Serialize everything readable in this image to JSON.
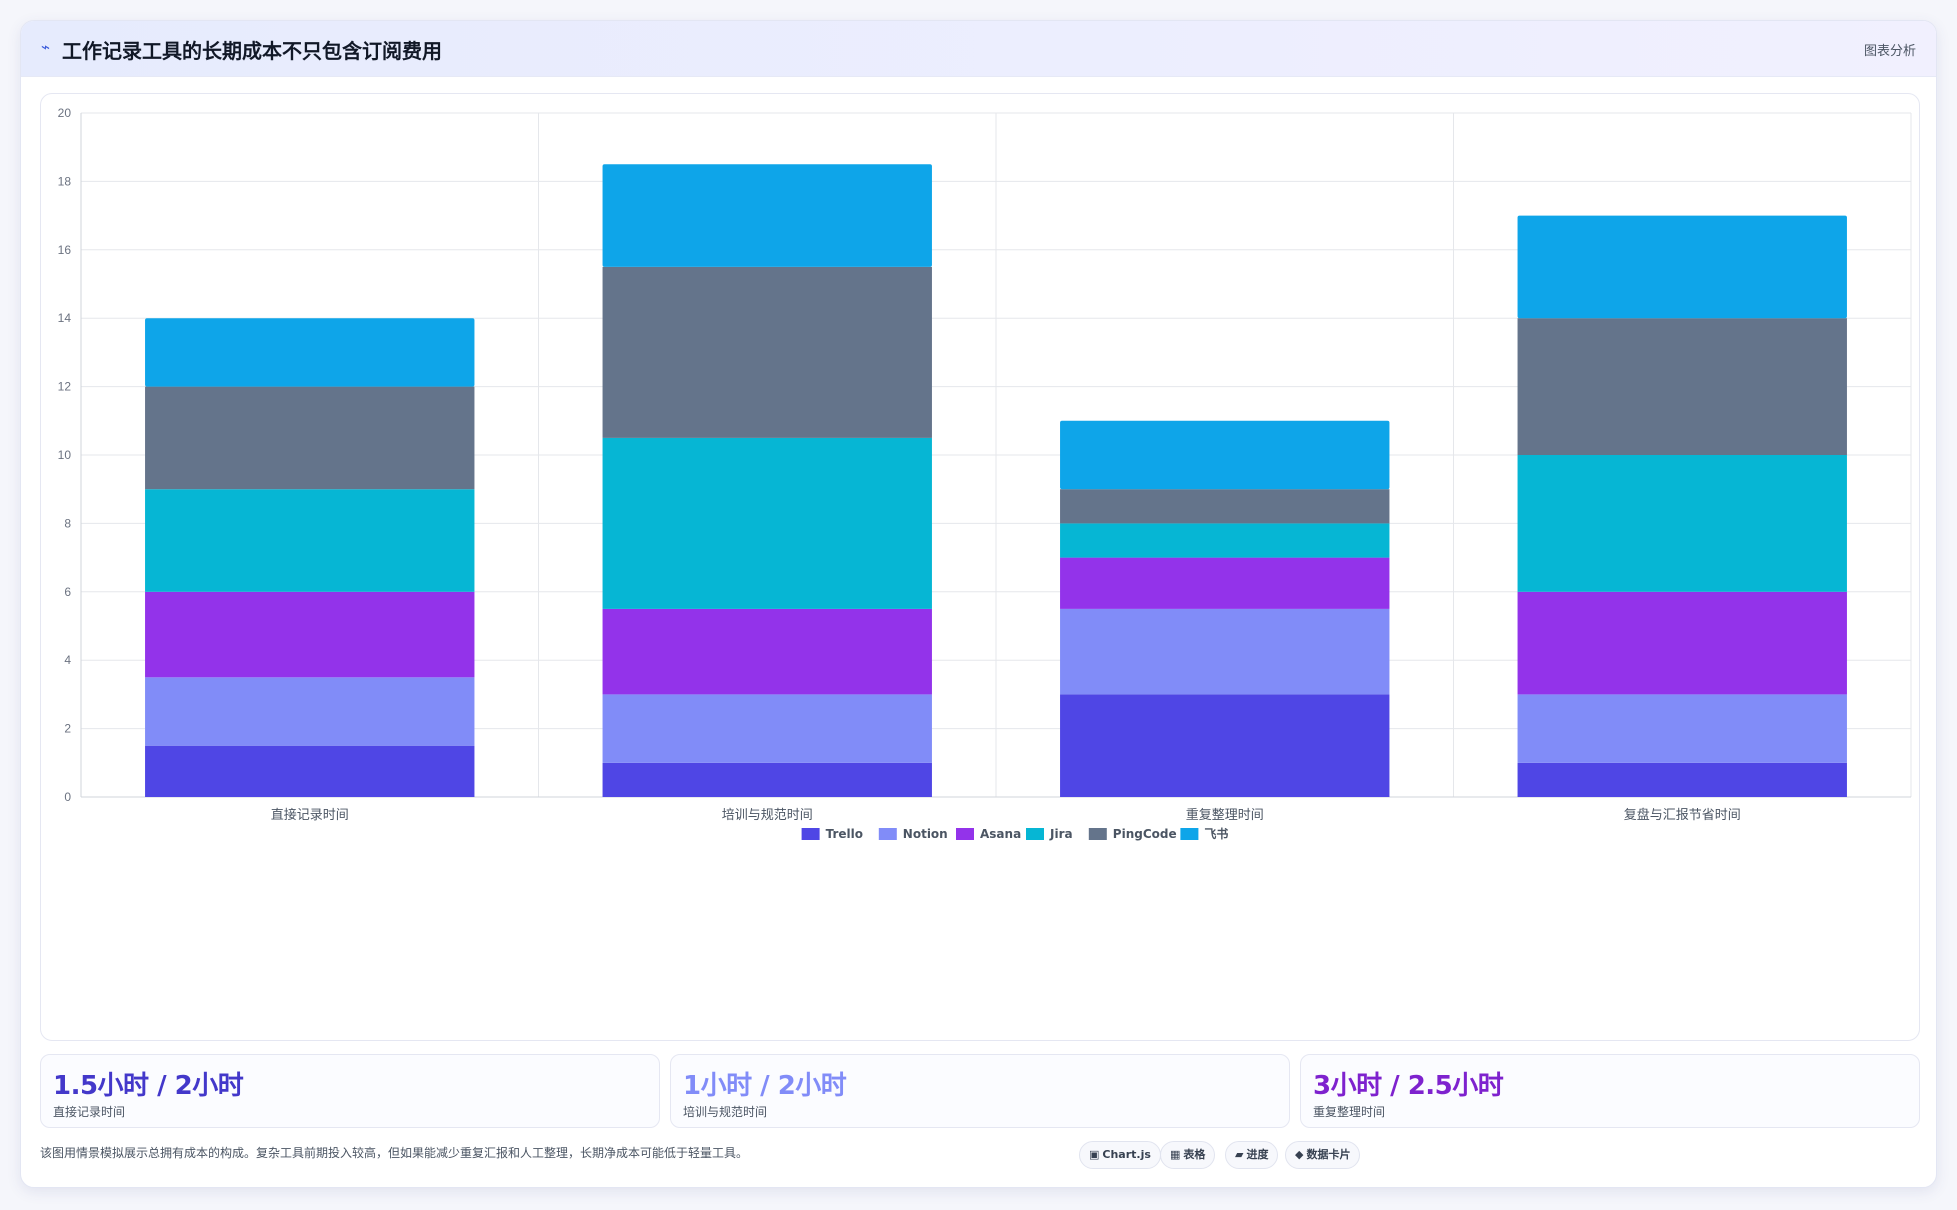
{
  "header": {
    "logo_glyph": "⌁",
    "title": "工作记录工具的长期成本不只包含订阅费用",
    "tag": "图表分析"
  },
  "chart_data": {
    "type": "bar",
    "stacked": true,
    "categories": [
      "直接记录时间",
      "培训与规范时间",
      "重复整理时间",
      "复盘与汇报节省时间"
    ],
    "series": [
      {
        "name": "Trello",
        "color": "#4f46e5",
        "values": [
          1.5,
          1,
          3,
          1
        ]
      },
      {
        "name": "Notion",
        "color": "#818cf8",
        "values": [
          2,
          2,
          2.5,
          2
        ]
      },
      {
        "name": "Asana",
        "color": "#9333ea",
        "values": [
          2.5,
          2.5,
          1.5,
          3
        ]
      },
      {
        "name": "Jira",
        "color": "#06b6d4",
        "values": [
          3,
          5,
          1,
          4
        ]
      },
      {
        "name": "PingCode",
        "color": "#64748b",
        "values": [
          3,
          5,
          1,
          4
        ]
      },
      {
        "name": "飞书",
        "color": "#0ea5e9",
        "values": [
          2,
          3,
          2,
          3
        ]
      }
    ],
    "ylim": [
      0,
      20
    ],
    "yticks": [
      0,
      2,
      4,
      6,
      8,
      10,
      12,
      14,
      16,
      18,
      20
    ],
    "grid": true,
    "legend": "bottom-center"
  },
  "stats": [
    {
      "value": "1.5小时 / 2小时",
      "label": "直接记录时间",
      "color": "#4338ca"
    },
    {
      "value": "1小时 / 2小时",
      "label": "培训与规范时间",
      "color": "#818cf8"
    },
    {
      "value": "3小时 / 2.5小时",
      "label": "重复整理时间",
      "color": "#7e22ce"
    }
  ],
  "note": "该图用情景模拟展示总拥有成本的构成。复杂工具前期投入较高，但如果能减少重复汇报和人工整理，长期净成本可能低于轻量工具。",
  "pills": [
    {
      "icon": "▣",
      "label": "Chart.js"
    },
    {
      "icon": "▦",
      "label": "表格"
    },
    {
      "icon": "▰",
      "label": "进度"
    },
    {
      "icon": "◆",
      "label": "数据卡片"
    }
  ]
}
